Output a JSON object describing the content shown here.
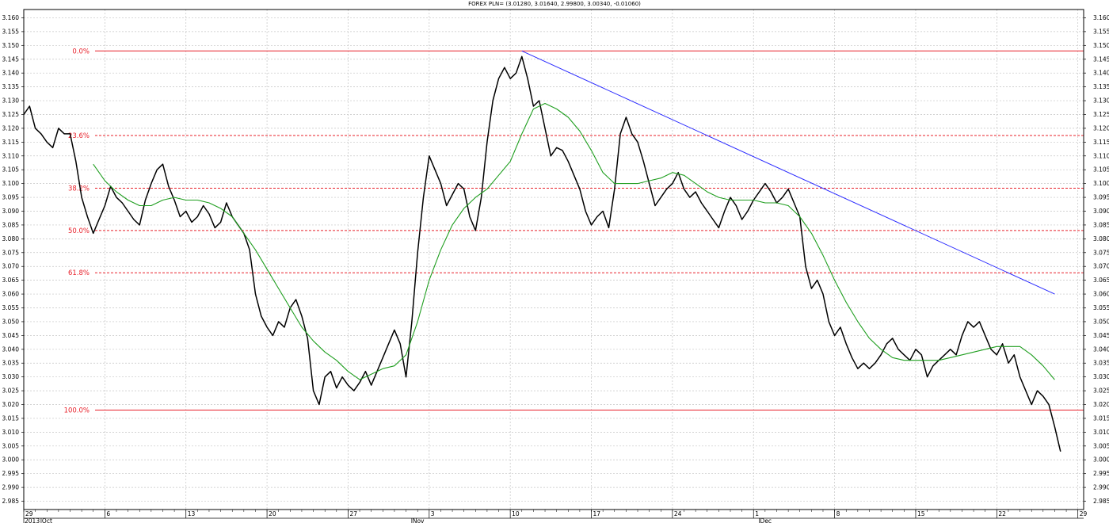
{
  "chart_data": {
    "type": "line",
    "title": "FOREX PLN= (3.01280, 3.01640, 2.99800, 3.00340, -0.01060)",
    "ylim": [
      2.982,
      3.163
    ],
    "y_ticks": [
      "3.160",
      "3.155",
      "3.150",
      "3.145",
      "3.140",
      "3.135",
      "3.130",
      "3.125",
      "3.120",
      "3.115",
      "3.110",
      "3.105",
      "3.100",
      "3.095",
      "3.090",
      "3.085",
      "3.080",
      "3.075",
      "3.070",
      "3.065",
      "3.060",
      "3.055",
      "3.050",
      "3.045",
      "3.040",
      "3.035",
      "3.030",
      "3.025",
      "3.020",
      "3.015",
      "3.010",
      "3.005",
      "3.000",
      "2.995",
      "2.990",
      "2.985"
    ],
    "x_ticks": [
      {
        "label": "29",
        "day": 0
      },
      {
        "label": "6",
        "day": 7
      },
      {
        "label": "13",
        "day": 14
      },
      {
        "label": "20",
        "day": 21
      },
      {
        "label": "27",
        "day": 28
      },
      {
        "label": "3",
        "day": 35
      },
      {
        "label": "10",
        "day": 42
      },
      {
        "label": "17",
        "day": 49
      },
      {
        "label": "24",
        "day": 56
      },
      {
        "label": "1",
        "day": 63
      },
      {
        "label": "8",
        "day": 70
      },
      {
        "label": "15",
        "day": 77
      },
      {
        "label": "22",
        "day": 84
      },
      {
        "label": "29",
        "day": 91
      }
    ],
    "month_labels": [
      {
        "label": "2013",
        "day": 0
      },
      {
        "label": "Oct",
        "day": 1.5
      },
      {
        "label": "Nov",
        "day": 33.5
      },
      {
        "label": "Dec",
        "day": 63.5
      }
    ],
    "grid": true,
    "series": [
      {
        "color": "#000000",
        "points": [
          [
            0.0,
            3.125
          ],
          [
            0.5,
            3.128
          ],
          [
            1.0,
            3.12
          ],
          [
            1.5,
            3.118
          ],
          [
            2.0,
            3.115
          ],
          [
            2.5,
            3.113
          ],
          [
            3.0,
            3.12
          ],
          [
            3.5,
            3.118
          ],
          [
            4.0,
            3.118
          ],
          [
            4.5,
            3.108
          ],
          [
            5.0,
            3.095
          ],
          [
            5.5,
            3.088
          ],
          [
            6.0,
            3.082
          ],
          [
            6.5,
            3.087
          ],
          [
            7.0,
            3.092
          ],
          [
            7.5,
            3.099
          ],
          [
            8.0,
            3.095
          ],
          [
            8.5,
            3.093
          ],
          [
            9.0,
            3.09
          ],
          [
            9.5,
            3.087
          ],
          [
            10.0,
            3.085
          ],
          [
            10.5,
            3.094
          ],
          [
            11.0,
            3.1
          ],
          [
            11.5,
            3.105
          ],
          [
            12.0,
            3.107
          ],
          [
            12.5,
            3.099
          ],
          [
            13.0,
            3.094
          ],
          [
            13.5,
            3.088
          ],
          [
            14.0,
            3.09
          ],
          [
            14.5,
            3.086
          ],
          [
            15.0,
            3.088
          ],
          [
            15.5,
            3.092
          ],
          [
            16.0,
            3.089
          ],
          [
            16.5,
            3.084
          ],
          [
            17.0,
            3.086
          ],
          [
            17.5,
            3.093
          ],
          [
            18.0,
            3.088
          ],
          [
            18.5,
            3.085
          ],
          [
            19.0,
            3.082
          ],
          [
            19.5,
            3.076
          ],
          [
            20.0,
            3.06
          ],
          [
            20.5,
            3.052
          ],
          [
            21.0,
            3.048
          ],
          [
            21.5,
            3.045
          ],
          [
            22.0,
            3.05
          ],
          [
            22.5,
            3.048
          ],
          [
            23.0,
            3.055
          ],
          [
            23.5,
            3.058
          ],
          [
            24.0,
            3.052
          ],
          [
            24.5,
            3.044
          ],
          [
            25.0,
            3.025
          ],
          [
            25.5,
            3.02
          ],
          [
            26.0,
            3.03
          ],
          [
            26.5,
            3.032
          ],
          [
            27.0,
            3.026
          ],
          [
            27.5,
            3.03
          ],
          [
            28.0,
            3.027
          ],
          [
            28.5,
            3.025
          ],
          [
            29.0,
            3.028
          ],
          [
            29.5,
            3.032
          ],
          [
            30.0,
            3.027
          ],
          [
            30.5,
            3.032
          ],
          [
            31.0,
            3.037
          ],
          [
            31.5,
            3.042
          ],
          [
            32.0,
            3.047
          ],
          [
            32.5,
            3.042
          ],
          [
            33.0,
            3.03
          ],
          [
            33.5,
            3.05
          ],
          [
            34.0,
            3.075
          ],
          [
            34.5,
            3.095
          ],
          [
            35.0,
            3.11
          ],
          [
            35.5,
            3.105
          ],
          [
            36.0,
            3.1
          ],
          [
            36.5,
            3.092
          ],
          [
            37.0,
            3.096
          ],
          [
            37.5,
            3.1
          ],
          [
            38.0,
            3.098
          ],
          [
            38.5,
            3.088
          ],
          [
            39.0,
            3.083
          ],
          [
            39.5,
            3.095
          ],
          [
            40.0,
            3.115
          ],
          [
            40.5,
            3.13
          ],
          [
            41.0,
            3.138
          ],
          [
            41.5,
            3.142
          ],
          [
            42.0,
            3.138
          ],
          [
            42.5,
            3.14
          ],
          [
            43.0,
            3.146
          ],
          [
            43.5,
            3.138
          ],
          [
            44.0,
            3.128
          ],
          [
            44.5,
            3.13
          ],
          [
            45.0,
            3.12
          ],
          [
            45.5,
            3.11
          ],
          [
            46.0,
            3.113
          ],
          [
            46.5,
            3.112
          ],
          [
            47.0,
            3.108
          ],
          [
            47.5,
            3.103
          ],
          [
            48.0,
            3.098
          ],
          [
            48.5,
            3.09
          ],
          [
            49.0,
            3.085
          ],
          [
            49.5,
            3.088
          ],
          [
            50.0,
            3.09
          ],
          [
            50.5,
            3.084
          ],
          [
            51.0,
            3.098
          ],
          [
            51.5,
            3.118
          ],
          [
            52.0,
            3.124
          ],
          [
            52.5,
            3.118
          ],
          [
            53.0,
            3.115
          ],
          [
            53.5,
            3.108
          ],
          [
            54.0,
            3.1
          ],
          [
            54.5,
            3.092
          ],
          [
            55.0,
            3.095
          ],
          [
            55.5,
            3.098
          ],
          [
            56.0,
            3.1
          ],
          [
            56.5,
            3.104
          ],
          [
            57.0,
            3.098
          ],
          [
            57.5,
            3.095
          ],
          [
            58.0,
            3.097
          ],
          [
            58.5,
            3.093
          ],
          [
            59.0,
            3.09
          ],
          [
            59.5,
            3.087
          ],
          [
            60.0,
            3.084
          ],
          [
            60.5,
            3.09
          ],
          [
            61.0,
            3.095
          ],
          [
            61.5,
            3.092
          ],
          [
            62.0,
            3.087
          ],
          [
            62.5,
            3.09
          ],
          [
            63.0,
            3.094
          ],
          [
            63.5,
            3.097
          ],
          [
            64.0,
            3.1
          ],
          [
            64.5,
            3.097
          ],
          [
            65.0,
            3.093
          ],
          [
            65.5,
            3.095
          ],
          [
            66.0,
            3.098
          ],
          [
            66.5,
            3.093
          ],
          [
            67.0,
            3.088
          ],
          [
            67.5,
            3.07
          ],
          [
            68.0,
            3.062
          ],
          [
            68.5,
            3.065
          ],
          [
            69.0,
            3.06
          ],
          [
            69.5,
            3.05
          ],
          [
            70.0,
            3.045
          ],
          [
            70.5,
            3.048
          ],
          [
            71.0,
            3.042
          ],
          [
            71.5,
            3.037
          ],
          [
            72.0,
            3.033
          ],
          [
            72.5,
            3.035
          ],
          [
            73.0,
            3.033
          ],
          [
            73.5,
            3.035
          ],
          [
            74.0,
            3.038
          ],
          [
            74.5,
            3.042
          ],
          [
            75.0,
            3.044
          ],
          [
            75.5,
            3.04
          ],
          [
            76.0,
            3.038
          ],
          [
            76.5,
            3.036
          ],
          [
            77.0,
            3.04
          ],
          [
            77.5,
            3.038
          ],
          [
            78.0,
            3.03
          ],
          [
            78.5,
            3.034
          ],
          [
            79.0,
            3.036
          ],
          [
            79.5,
            3.038
          ],
          [
            80.0,
            3.04
          ],
          [
            80.5,
            3.038
          ],
          [
            81.0,
            3.045
          ],
          [
            81.5,
            3.05
          ],
          [
            82.0,
            3.048
          ],
          [
            82.5,
            3.05
          ],
          [
            83.0,
            3.045
          ],
          [
            83.5,
            3.04
          ],
          [
            84.0,
            3.038
          ],
          [
            84.5,
            3.042
          ],
          [
            85.0,
            3.035
          ],
          [
            85.5,
            3.038
          ],
          [
            86.0,
            3.03
          ],
          [
            86.5,
            3.025
          ],
          [
            87.0,
            3.02
          ],
          [
            87.5,
            3.025
          ],
          [
            88.0,
            3.023
          ],
          [
            88.5,
            3.02
          ],
          [
            89.0,
            3.012
          ],
          [
            89.5,
            3.003
          ]
        ]
      },
      {
        "color": "#1f9e1f",
        "points": [
          [
            6.0,
            3.107
          ],
          [
            7.0,
            3.101
          ],
          [
            8.0,
            3.097
          ],
          [
            9.0,
            3.094
          ],
          [
            10.0,
            3.092
          ],
          [
            11.0,
            3.092
          ],
          [
            12.0,
            3.094
          ],
          [
            13.0,
            3.095
          ],
          [
            14.0,
            3.094
          ],
          [
            15.0,
            3.094
          ],
          [
            16.0,
            3.093
          ],
          [
            17.0,
            3.091
          ],
          [
            18.0,
            3.088
          ],
          [
            19.0,
            3.082
          ],
          [
            20.0,
            3.076
          ],
          [
            21.0,
            3.069
          ],
          [
            22.0,
            3.062
          ],
          [
            23.0,
            3.055
          ],
          [
            24.0,
            3.048
          ],
          [
            25.0,
            3.043
          ],
          [
            26.0,
            3.039
          ],
          [
            27.0,
            3.036
          ],
          [
            28.0,
            3.032
          ],
          [
            29.0,
            3.029
          ],
          [
            30.0,
            3.031
          ],
          [
            31.0,
            3.033
          ],
          [
            32.0,
            3.034
          ],
          [
            33.0,
            3.038
          ],
          [
            34.0,
            3.05
          ],
          [
            35.0,
            3.065
          ],
          [
            36.0,
            3.076
          ],
          [
            37.0,
            3.085
          ],
          [
            38.0,
            3.091
          ],
          [
            39.0,
            3.095
          ],
          [
            40.0,
            3.098
          ],
          [
            41.0,
            3.103
          ],
          [
            42.0,
            3.108
          ],
          [
            43.0,
            3.118
          ],
          [
            44.0,
            3.127
          ],
          [
            45.0,
            3.129
          ],
          [
            46.0,
            3.127
          ],
          [
            47.0,
            3.124
          ],
          [
            48.0,
            3.119
          ],
          [
            49.0,
            3.112
          ],
          [
            50.0,
            3.104
          ],
          [
            51.0,
            3.1
          ],
          [
            52.0,
            3.1
          ],
          [
            53.0,
            3.1
          ],
          [
            54.0,
            3.101
          ],
          [
            55.0,
            3.102
          ],
          [
            56.0,
            3.104
          ],
          [
            57.0,
            3.103
          ],
          [
            58.0,
            3.1
          ],
          [
            59.0,
            3.097
          ],
          [
            60.0,
            3.095
          ],
          [
            61.0,
            3.094
          ],
          [
            62.0,
            3.094
          ],
          [
            63.0,
            3.094
          ],
          [
            64.0,
            3.093
          ],
          [
            65.0,
            3.093
          ],
          [
            66.0,
            3.092
          ],
          [
            67.0,
            3.088
          ],
          [
            68.0,
            3.082
          ],
          [
            69.0,
            3.074
          ],
          [
            70.0,
            3.065
          ],
          [
            71.0,
            3.057
          ],
          [
            72.0,
            3.05
          ],
          [
            73.0,
            3.044
          ],
          [
            74.0,
            3.04
          ],
          [
            75.0,
            3.037
          ],
          [
            76.0,
            3.036
          ],
          [
            77.0,
            3.036
          ],
          [
            78.0,
            3.036
          ],
          [
            79.0,
            3.036
          ],
          [
            80.0,
            3.037
          ],
          [
            81.0,
            3.038
          ],
          [
            82.0,
            3.039
          ],
          [
            83.0,
            3.04
          ],
          [
            84.0,
            3.041
          ],
          [
            85.0,
            3.041
          ],
          [
            86.0,
            3.041
          ],
          [
            87.0,
            3.038
          ],
          [
            88.0,
            3.034
          ],
          [
            89.0,
            3.029
          ]
        ]
      }
    ],
    "trendline": {
      "color": "#2b2bff",
      "from": [
        43.0,
        3.148
      ],
      "to": [
        89.0,
        3.06
      ]
    },
    "fibonacci": {
      "color": "#e8202a",
      "levels": [
        {
          "label": "0.0%",
          "value": 3.148,
          "style": "solid"
        },
        {
          "label": "23.6%",
          "value": 3.1174,
          "style": "dashed"
        },
        {
          "label": "38.2%",
          "value": 3.0983,
          "style": "dashed"
        },
        {
          "label": "50.0%",
          "value": 3.083,
          "style": "dashed"
        },
        {
          "label": "61.8%",
          "value": 3.0677,
          "style": "dashed"
        },
        {
          "label": "100.0%",
          "value": 3.018,
          "style": "solid"
        }
      ]
    }
  }
}
